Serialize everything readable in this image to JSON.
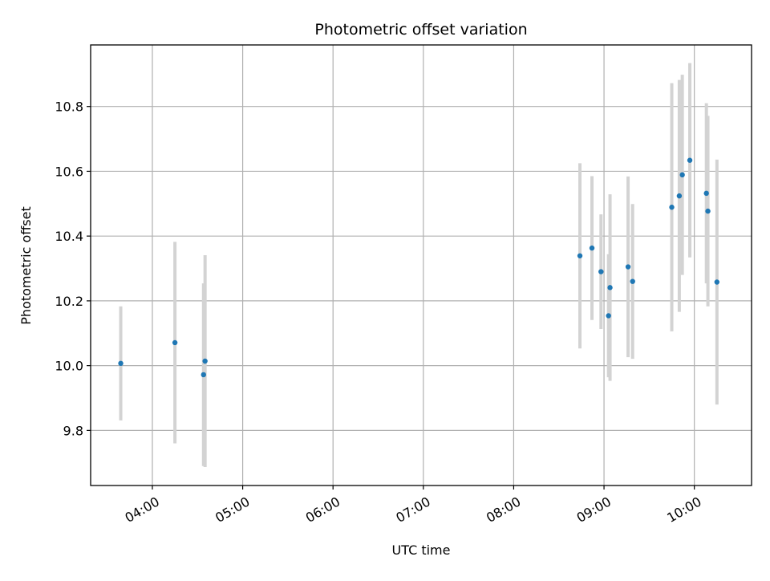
{
  "chart_data": {
    "type": "scatter",
    "title": "Photometric offset variation",
    "xlabel": "UTC time",
    "ylabel": "Photometric offset",
    "x_unit": "time of day (UTC, HH:MM)",
    "xlim": [
      "03:19",
      "10:38"
    ],
    "ylim": [
      9.63,
      10.99
    ],
    "x_ticks": [
      "04:00",
      "05:00",
      "06:00",
      "07:00",
      "08:00",
      "09:00",
      "10:00"
    ],
    "y_ticks": [
      9.8,
      10.0,
      10.2,
      10.4,
      10.6,
      10.8
    ],
    "y_tick_labels": [
      "9.8",
      "10.0",
      "10.2",
      "10.4",
      "10.6",
      "10.8"
    ],
    "x_tick_rotation": "30 degrees",
    "grid": true,
    "marker_color": "#1f77b4",
    "errorbar_color": "#d3d3d3",
    "series": [
      {
        "points": [
          {
            "time": "03:39",
            "y": 10.007,
            "err": 0.176
          },
          {
            "time": "04:15",
            "y": 10.071,
            "err": 0.311
          },
          {
            "time": "04:34",
            "y": 9.972,
            "err": 0.282
          },
          {
            "time": "04:35",
            "y": 10.014,
            "err": 0.327
          },
          {
            "time": "08:44",
            "y": 10.339,
            "err": 0.286
          },
          {
            "time": "08:52",
            "y": 10.363,
            "err": 0.222
          },
          {
            "time": "08:58",
            "y": 10.29,
            "err": 0.177
          },
          {
            "time": "09:03",
            "y": 10.154,
            "err": 0.19
          },
          {
            "time": "09:04",
            "y": 10.241,
            "err": 0.288
          },
          {
            "time": "09:16",
            "y": 10.305,
            "err": 0.279
          },
          {
            "time": "09:19",
            "y": 10.26,
            "err": 0.239
          },
          {
            "time": "09:45",
            "y": 10.489,
            "err": 0.383
          },
          {
            "time": "09:50",
            "y": 10.524,
            "err": 0.358
          },
          {
            "time": "09:52",
            "y": 10.589,
            "err": 0.309
          },
          {
            "time": "09:57",
            "y": 10.634,
            "err": 0.3
          },
          {
            "time": "10:08",
            "y": 10.532,
            "err": 0.278
          },
          {
            "time": "10:09",
            "y": 10.477,
            "err": 0.294
          },
          {
            "time": "10:15",
            "y": 10.258,
            "err": 0.378
          }
        ]
      }
    ]
  }
}
